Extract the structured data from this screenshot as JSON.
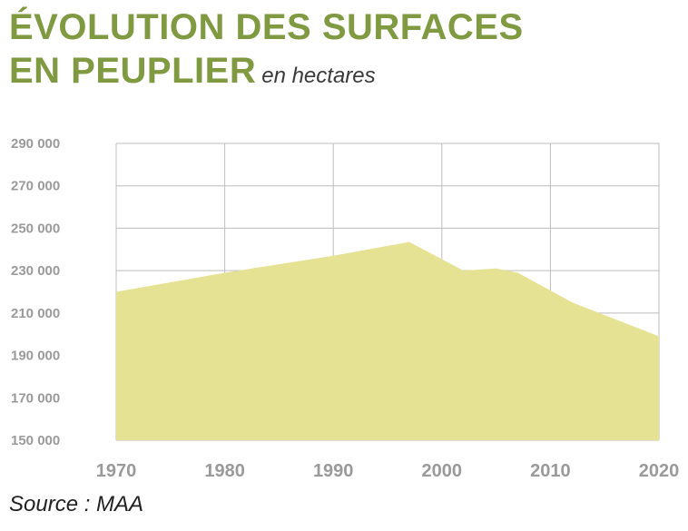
{
  "header": {
    "title_line1": "ÉVOLUTION DES SURFACES",
    "title_line2": "EN PEUPLIER",
    "unit": "en hectares"
  },
  "footer": {
    "source": "Source : MAA"
  },
  "colors": {
    "title": "#7f9a40",
    "area_fill": "#e6e293",
    "grid": "#bdbdbd",
    "tick_labels": "#9a9a9a"
  },
  "chart_data": {
    "type": "area",
    "title": "ÉVOLUTION DES SURFACES EN PEUPLIER",
    "ylabel": "en hectares",
    "x": [
      1970,
      1980,
      1990,
      1997,
      2002,
      2005,
      2007,
      2012,
      2020
    ],
    "values": [
      220000,
      229000,
      237000,
      243500,
      230000,
      231000,
      229000,
      215000,
      199000
    ],
    "xlim": [
      1970,
      2020
    ],
    "ylim": [
      150000,
      290000
    ],
    "xticks": [
      1970,
      1980,
      1990,
      2000,
      2010,
      2020
    ],
    "xtick_labels": [
      "1970",
      "1980",
      "1990",
      "2000",
      "2010",
      "2020"
    ],
    "yticks": [
      150000,
      170000,
      190000,
      210000,
      230000,
      250000,
      270000,
      290000
    ],
    "ytick_labels": [
      "150 000",
      "170 000",
      "190 000",
      "210 000",
      "230 000",
      "250 000",
      "270 000",
      "290 000"
    ],
    "grid": true,
    "legend": "none"
  }
}
